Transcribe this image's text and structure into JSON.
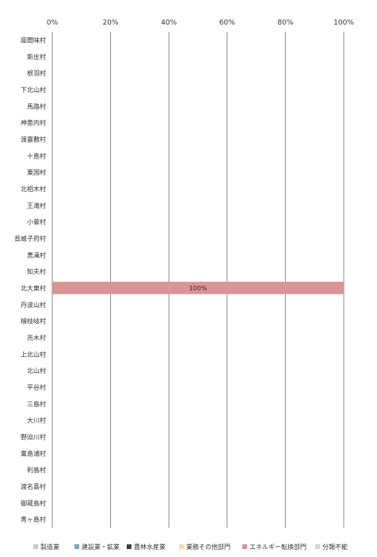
{
  "chart_data": {
    "type": "bar",
    "orientation": "horizontal",
    "stacked": true,
    "percent_scale": true,
    "x_axis_position": "top",
    "grid": true,
    "legend_position": "bottom",
    "xlim": [
      0,
      100
    ],
    "x_ticks": [
      "0%",
      "20%",
      "40%",
      "60%",
      "80%",
      "100%"
    ],
    "categories": [
      "座間味村",
      "新庄村",
      "根羽村",
      "下北山村",
      "馬路村",
      "神恵内村",
      "渡嘉敷村",
      "十島村",
      "粟国村",
      "北相木村",
      "王滝村",
      "小菅村",
      "音威子府村",
      "黒滝村",
      "知夫村",
      "北大東村",
      "丹波山村",
      "檜枝岐村",
      "売木村",
      "上北山村",
      "北山村",
      "平谷村",
      "三島村",
      "大川村",
      "野迫川村",
      "粟島浦村",
      "利島村",
      "渡名喜村",
      "御蔵島村",
      "青ヶ島村"
    ],
    "series": [
      {
        "name": "製造業",
        "color": "#bcd0d6",
        "values": [
          0,
          0,
          0,
          0,
          0,
          0,
          0,
          0,
          0,
          0,
          0,
          0,
          0,
          0,
          0,
          0,
          0,
          0,
          0,
          0,
          0,
          0,
          0,
          0,
          0,
          0,
          0,
          0,
          0,
          0
        ]
      },
      {
        "name": "建設業・鉱業",
        "color": "#7fa7b5",
        "values": [
          0,
          0,
          0,
          0,
          0,
          0,
          0,
          0,
          0,
          0,
          0,
          0,
          0,
          0,
          0,
          0,
          0,
          0,
          0,
          0,
          0,
          0,
          0,
          0,
          0,
          0,
          0,
          0,
          0,
          0
        ]
      },
      {
        "name": "農林水産業",
        "color": "#2e4a43",
        "values": [
          0,
          0,
          0,
          0,
          0,
          0,
          0,
          0,
          0,
          0,
          0,
          0,
          0,
          0,
          0,
          0,
          0,
          0,
          0,
          0,
          0,
          0,
          0,
          0,
          0,
          0,
          0,
          0,
          0,
          0
        ]
      },
      {
        "name": "業務その他部門",
        "color": "#f3dc96",
        "values": [
          0,
          0,
          0,
          0,
          0,
          0,
          0,
          0,
          0,
          0,
          0,
          0,
          0,
          0,
          0,
          0,
          0,
          0,
          0,
          0,
          0,
          0,
          0,
          0,
          0,
          0,
          0,
          0,
          0,
          0
        ]
      },
      {
        "name": "エネルギー転換部門",
        "color": "#d99593",
        "values": [
          0,
          0,
          0,
          0,
          0,
          0,
          0,
          0,
          0,
          0,
          0,
          0,
          0,
          0,
          0,
          100,
          0,
          0,
          0,
          0,
          0,
          0,
          0,
          0,
          0,
          0,
          0,
          0,
          0,
          0
        ]
      },
      {
        "name": "分類不能",
        "color": "#d4d4d4",
        "values": [
          0,
          0,
          0,
          0,
          0,
          0,
          0,
          0,
          0,
          0,
          0,
          0,
          0,
          0,
          0,
          0,
          0,
          0,
          0,
          0,
          0,
          0,
          0,
          0,
          0,
          0,
          0,
          0,
          0,
          0
        ]
      }
    ],
    "data_labels": [
      {
        "category": "北大東村",
        "series": "エネルギー転換部門",
        "text": "100%"
      }
    ]
  }
}
